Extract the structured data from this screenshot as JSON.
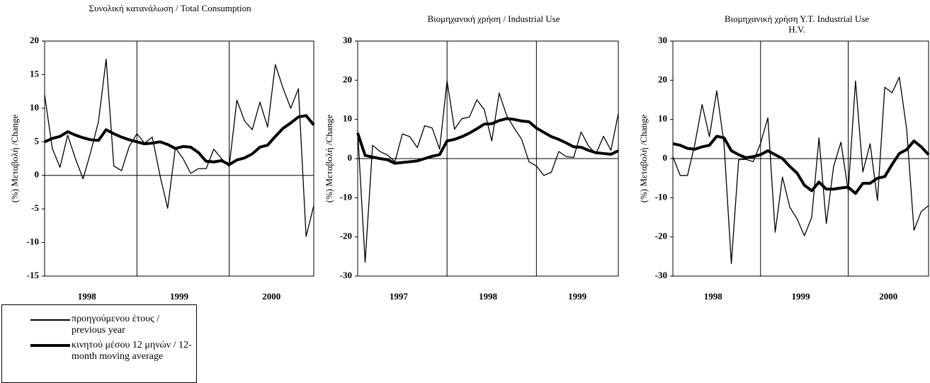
{
  "chart_data": [
    {
      "type": "line",
      "title": "Συνολική κατανάλωση / Total Consumption",
      "ylabel": "(%) Μεταβολή /Change",
      "categories": [
        null,
        null,
        null,
        null,
        null,
        null,
        "1998",
        null,
        null,
        null,
        null,
        null,
        null,
        null,
        null,
        null,
        null,
        null,
        "1999",
        null,
        null,
        null,
        null,
        null,
        null,
        null,
        null,
        null,
        null,
        null,
        "2000",
        null,
        null,
        null,
        null,
        null
      ],
      "ylim": [
        -15,
        20
      ],
      "yticks": [
        -15,
        -10,
        -5,
        0,
        5,
        10,
        15,
        20
      ],
      "series": [
        {
          "name": "προηγούμενου έτους / previous year",
          "color": "#000000",
          "width": 1.3,
          "values": [
            12,
            4,
            1.2,
            6,
            2.5,
            -0.5,
            3.5,
            8,
            17.3,
            1.4,
            0.7,
            4.3,
            6.2,
            4.8,
            5.7,
            0,
            -4.9,
            4.1,
            2.5,
            0.3,
            1,
            1,
            3.9,
            2.5,
            1.3,
            11.2,
            8.1,
            6.8,
            10.9,
            7.2,
            16.5,
            13,
            10,
            12.9,
            -9.1,
            -4.5
          ]
        },
        {
          "name": "κινητού μέσου 12 μηνών / 12-month moving average",
          "color": "#000000",
          "width": 4,
          "values": [
            5,
            5.5,
            5.8,
            6.5,
            6,
            5.6,
            5.3,
            5.2,
            6.8,
            6.2,
            5.7,
            5.3,
            5,
            4.7,
            4.8,
            5,
            4.6,
            4,
            4.3,
            4.2,
            3.4,
            2.1,
            2,
            2.2,
            1.6,
            2.3,
            2.6,
            3.2,
            4.2,
            4.5,
            5.8,
            7,
            7.8,
            8.7,
            8.9,
            7.5
          ]
        }
      ]
    },
    {
      "type": "line",
      "title": "Βιομηχανική χρήση / Industrial Use",
      "ylabel": "(%) Μεταβολή /Change",
      "categories": [
        null,
        null,
        null,
        null,
        null,
        null,
        "1997",
        null,
        null,
        null,
        null,
        null,
        null,
        null,
        null,
        null,
        null,
        null,
        "1998",
        null,
        null,
        null,
        null,
        null,
        null,
        null,
        null,
        null,
        null,
        null,
        "1999",
        null,
        null,
        null,
        null,
        null
      ],
      "ylim": [
        -30,
        30
      ],
      "yticks": [
        -30,
        -20,
        -10,
        0,
        10,
        20,
        30
      ],
      "series": [
        {
          "color": "#000000",
          "width": 1.3,
          "values": [
            7,
            -26.5,
            3.4,
            1.8,
            0.9,
            -0.8,
            6.3,
            5.6,
            2.8,
            8.4,
            7.8,
            2.4,
            19.8,
            7.5,
            10.2,
            10.6,
            15,
            12.5,
            4.5,
            16.7,
            11,
            7.8,
            5,
            -0.8,
            -1.9,
            -4.3,
            -3.5,
            1.8,
            0.5,
            0.3,
            6.8,
            3.2,
            1.2,
            5.7,
            2.1,
            11.5
          ]
        },
        {
          "color": "#000000",
          "width": 4,
          "values": [
            6.5,
            0.8,
            0.4,
            0,
            -0.3,
            -1.2,
            -1,
            -0.8,
            -0.6,
            0,
            0.6,
            1,
            4.5,
            4.9,
            5.6,
            6.5,
            7.6,
            8.8,
            8.9,
            9.7,
            10.2,
            10,
            9.6,
            9.4,
            7.8,
            6.7,
            5.6,
            4.9,
            4,
            3,
            2.9,
            2.1,
            1.5,
            1.3,
            1.1,
            2
          ]
        }
      ]
    },
    {
      "type": "line",
      "title": "Βιομηχανική χρήση Υ.Τ. Industrial Use H.V.",
      "ylabel": "(%) Μεταβολή /Change",
      "categories": [
        null,
        null,
        null,
        null,
        null,
        null,
        "1998",
        null,
        null,
        null,
        null,
        null,
        null,
        null,
        null,
        null,
        null,
        null,
        "1999",
        null,
        null,
        null,
        null,
        null,
        null,
        null,
        null,
        null,
        null,
        null,
        "2000",
        null,
        null,
        null,
        null,
        null
      ],
      "ylim": [
        -30,
        30
      ],
      "yticks": [
        -30,
        -20,
        -10,
        0,
        10,
        20,
        30
      ],
      "series": [
        {
          "color": "#000000",
          "width": 1.3,
          "values": [
            0.5,
            -4.3,
            -4.3,
            3.6,
            13.8,
            5.6,
            17.3,
            3.8,
            -26.8,
            -0.3,
            -0.2,
            -0.8,
            3.9,
            10.4,
            -18.8,
            -4.7,
            -12.4,
            -15.4,
            -19.7,
            -15,
            5.3,
            -16.6,
            -2,
            4.2,
            -8.3,
            19.8,
            -3.4,
            3.8,
            -10.7,
            18.2,
            16.8,
            20.8,
            7.5,
            -18.3,
            -13.5,
            -12
          ]
        },
        {
          "color": "#000000",
          "width": 4,
          "values": [
            3.8,
            3.4,
            2.6,
            2.4,
            3,
            3.4,
            5.7,
            5.3,
            2,
            1,
            0.2,
            0.5,
            1,
            2,
            1,
            0,
            -2,
            -3.7,
            -6.8,
            -8.2,
            -6,
            -7.8,
            -7.8,
            -7.5,
            -7.3,
            -8.9,
            -6.3,
            -6.3,
            -5,
            -4.6,
            -1.5,
            1.3,
            2.3,
            4.5,
            3,
            1
          ]
        }
      ]
    }
  ]
}
